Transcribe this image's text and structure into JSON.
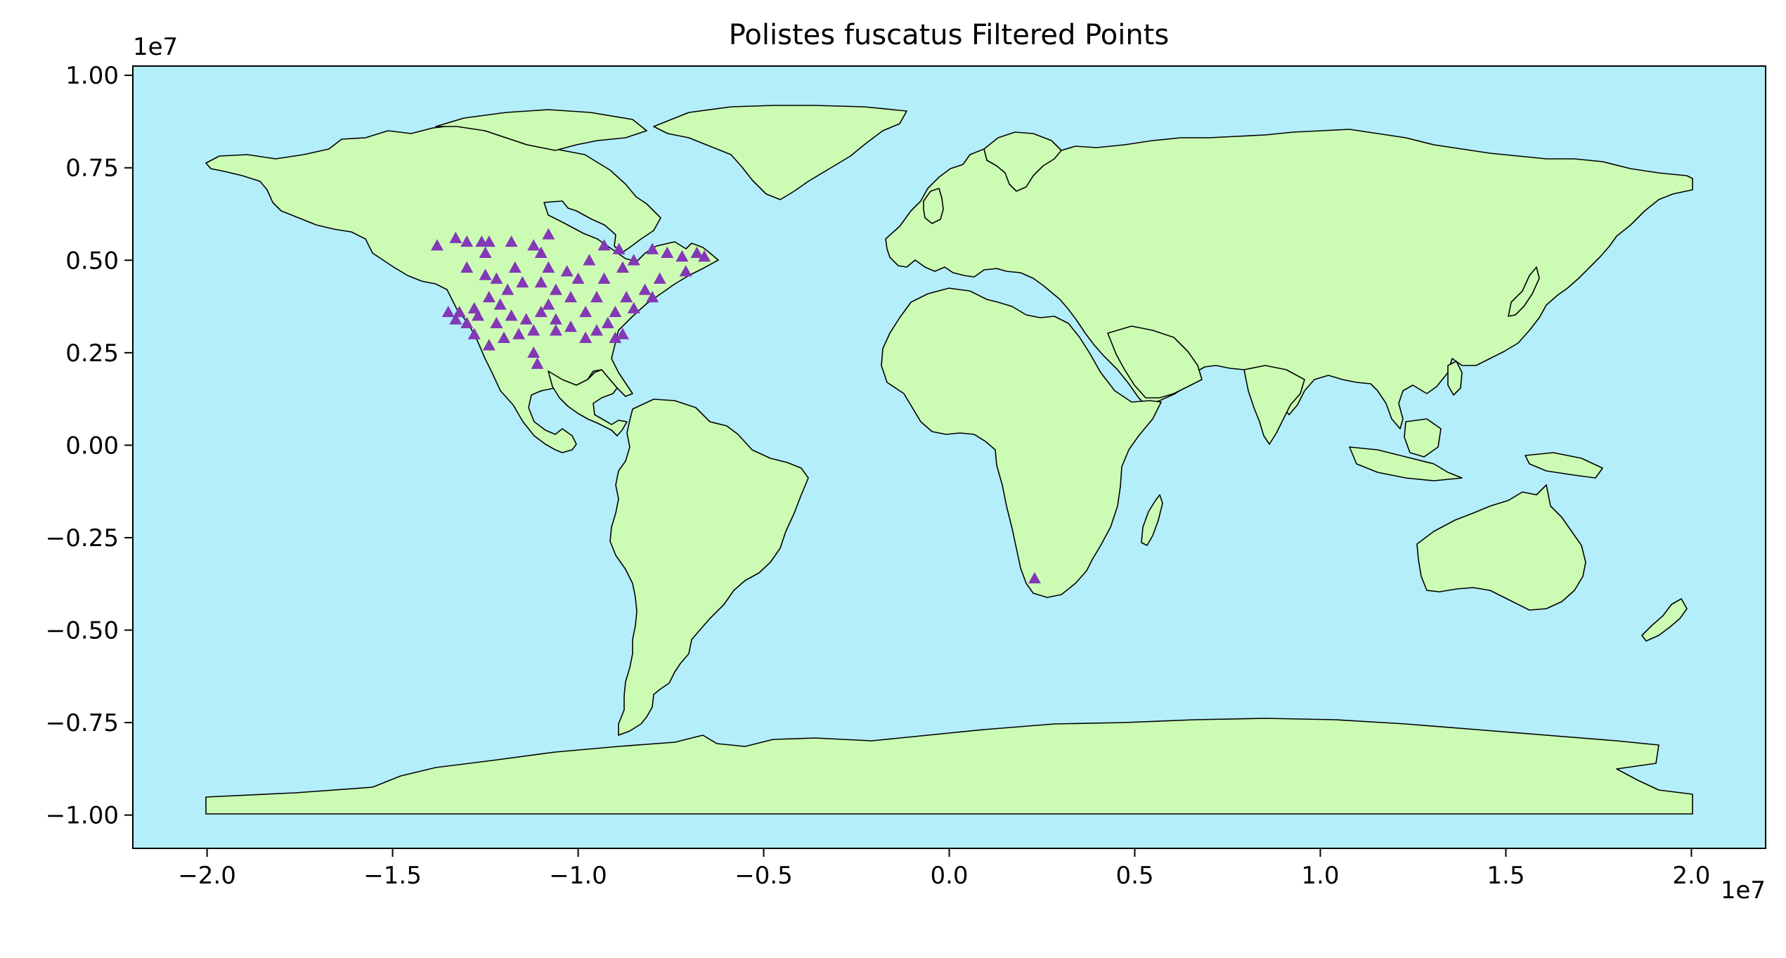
{
  "colors": {
    "ocean": "#b4eefa",
    "land": "#ccfcb4",
    "border": "#000000",
    "points": "#8338b6"
  },
  "chart_data": {
    "type": "scatter",
    "title": "Polistes fuscatus Filtered Points",
    "xlabel": "",
    "ylabel": "",
    "x_offset_label": "1e7",
    "y_offset_label": "1e7",
    "xlim": [
      -2.2,
      2.2
    ],
    "ylim": [
      -1.09,
      1.025
    ],
    "x_units": "1e7 m (projected)",
    "y_units": "1e7 m (projected)",
    "x_ticks": [
      -2.0,
      -1.5,
      -1.0,
      -0.5,
      0.0,
      0.5,
      1.0,
      1.5,
      2.0
    ],
    "x_tick_labels": [
      "−2.0",
      "−1.5",
      "−1.0",
      "−0.5",
      "0.0",
      "0.5",
      "1.0",
      "1.5",
      "2.0"
    ],
    "y_ticks": [
      1.0,
      0.75,
      0.5,
      0.25,
      0.0,
      -0.25,
      -0.5,
      -0.75,
      -1.0
    ],
    "y_tick_labels": [
      "1.00",
      "0.75",
      "0.50",
      "0.25",
      "0.00",
      "−0.25",
      "−0.50",
      "−0.75",
      "−1.00"
    ],
    "grid": false,
    "marker": "triangle",
    "series": [
      {
        "marker": "triangle",
        "points": [
          [
            -1.38,
            0.54
          ],
          [
            -1.33,
            0.56
          ],
          [
            -1.3,
            0.55
          ],
          [
            -1.26,
            0.55
          ],
          [
            -1.24,
            0.55
          ],
          [
            -1.18,
            0.55
          ],
          [
            -1.08,
            0.57
          ],
          [
            -1.12,
            0.54
          ],
          [
            -1.25,
            0.52
          ],
          [
            -1.3,
            0.48
          ],
          [
            -1.25,
            0.46
          ],
          [
            -1.22,
            0.45
          ],
          [
            -1.17,
            0.48
          ],
          [
            -1.15,
            0.44
          ],
          [
            -1.19,
            0.42
          ],
          [
            -1.21,
            0.38
          ],
          [
            -1.24,
            0.4
          ],
          [
            -1.28,
            0.37
          ],
          [
            -1.32,
            0.36
          ],
          [
            -1.35,
            0.36
          ],
          [
            -1.33,
            0.34
          ],
          [
            -1.3,
            0.33
          ],
          [
            -1.27,
            0.35
          ],
          [
            -1.22,
            0.33
          ],
          [
            -1.18,
            0.35
          ],
          [
            -1.14,
            0.34
          ],
          [
            -1.1,
            0.36
          ],
          [
            -1.12,
            0.31
          ],
          [
            -1.16,
            0.3
          ],
          [
            -1.2,
            0.29
          ],
          [
            -1.24,
            0.27
          ],
          [
            -1.12,
            0.25
          ],
          [
            -1.11,
            0.22
          ],
          [
            -1.06,
            0.31
          ],
          [
            -1.06,
            0.34
          ],
          [
            -1.08,
            0.38
          ],
          [
            -1.06,
            0.42
          ],
          [
            -1.1,
            0.44
          ],
          [
            -1.08,
            0.48
          ],
          [
            -1.1,
            0.52
          ],
          [
            -1.28,
            0.3
          ],
          [
            -0.88,
            0.3
          ],
          [
            -0.9,
            0.29
          ],
          [
            -0.92,
            0.33
          ],
          [
            -0.95,
            0.31
          ],
          [
            -0.98,
            0.29
          ],
          [
            -1.02,
            0.32
          ],
          [
            -1.0,
            0.45
          ],
          [
            -0.97,
            0.5
          ],
          [
            -0.93,
            0.54
          ],
          [
            -0.89,
            0.53
          ],
          [
            -0.85,
            0.5
          ],
          [
            -0.8,
            0.53
          ],
          [
            -0.76,
            0.52
          ],
          [
            -0.72,
            0.51
          ],
          [
            -0.68,
            0.52
          ],
          [
            -0.66,
            0.51
          ],
          [
            -0.71,
            0.47
          ],
          [
            -0.78,
            0.45
          ],
          [
            -0.82,
            0.42
          ],
          [
            -0.87,
            0.4
          ],
          [
            -0.9,
            0.36
          ],
          [
            -0.85,
            0.37
          ],
          [
            -0.8,
            0.4
          ],
          [
            -0.95,
            0.4
          ],
          [
            -1.02,
            0.4
          ],
          [
            -1.03,
            0.47
          ],
          [
            -0.98,
            0.36
          ],
          [
            -0.93,
            0.45
          ],
          [
            -0.88,
            0.48
          ],
          [
            0.23,
            -0.36
          ]
        ]
      }
    ]
  }
}
